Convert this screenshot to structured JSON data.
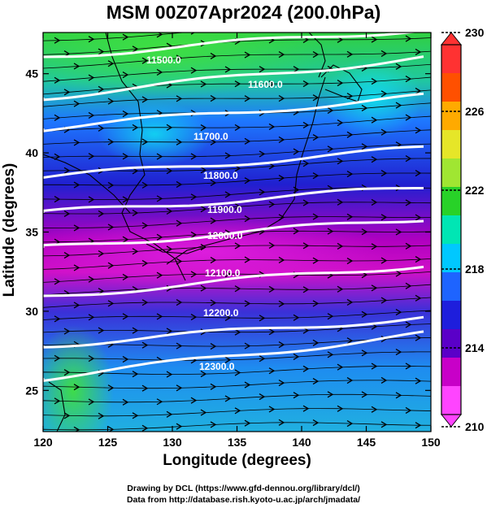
{
  "title": "MSM 00Z07Apr2024 (200.0hPa)",
  "x_axis": {
    "label": "Longitude (degrees)",
    "min": 120,
    "max": 150,
    "ticks": [
      "120",
      "125",
      "130",
      "135",
      "140",
      "145",
      "150"
    ]
  },
  "y_axis": {
    "label": "Latitude  (degrees)",
    "min": 22.4,
    "max": 47.6,
    "ticks": [
      "25",
      "30",
      "35",
      "40",
      "45"
    ]
  },
  "colorbar": {
    "min": 210,
    "max": 230,
    "ticks": [
      "210",
      "214",
      "218",
      "222",
      "226",
      "230"
    ],
    "colors": [
      "#ff44ff",
      "#c800c8",
      "#5a00c8",
      "#1e1edc",
      "#1e64ff",
      "#00c8ff",
      "#00e6b4",
      "#28d228",
      "#a0e632",
      "#e6e628",
      "#ffaa00",
      "#ff5000",
      "#ff3232"
    ]
  },
  "contours": [
    {
      "label": "11500.0"
    },
    {
      "label": "11600.0"
    },
    {
      "label": "11700.0"
    },
    {
      "label": "11800.0"
    },
    {
      "label": "11900.0"
    },
    {
      "label": "12000.0"
    },
    {
      "label": "12100.0"
    },
    {
      "label": "12200.0"
    },
    {
      "label": "12300.0"
    }
  ],
  "footer": {
    "line1": "Drawing by DCL (https://www.gfd-dennou.org/library/dcl/)",
    "line2": "Data from http://database.rish.kyoto-u.ac.jp/arch/jmadata/"
  }
}
